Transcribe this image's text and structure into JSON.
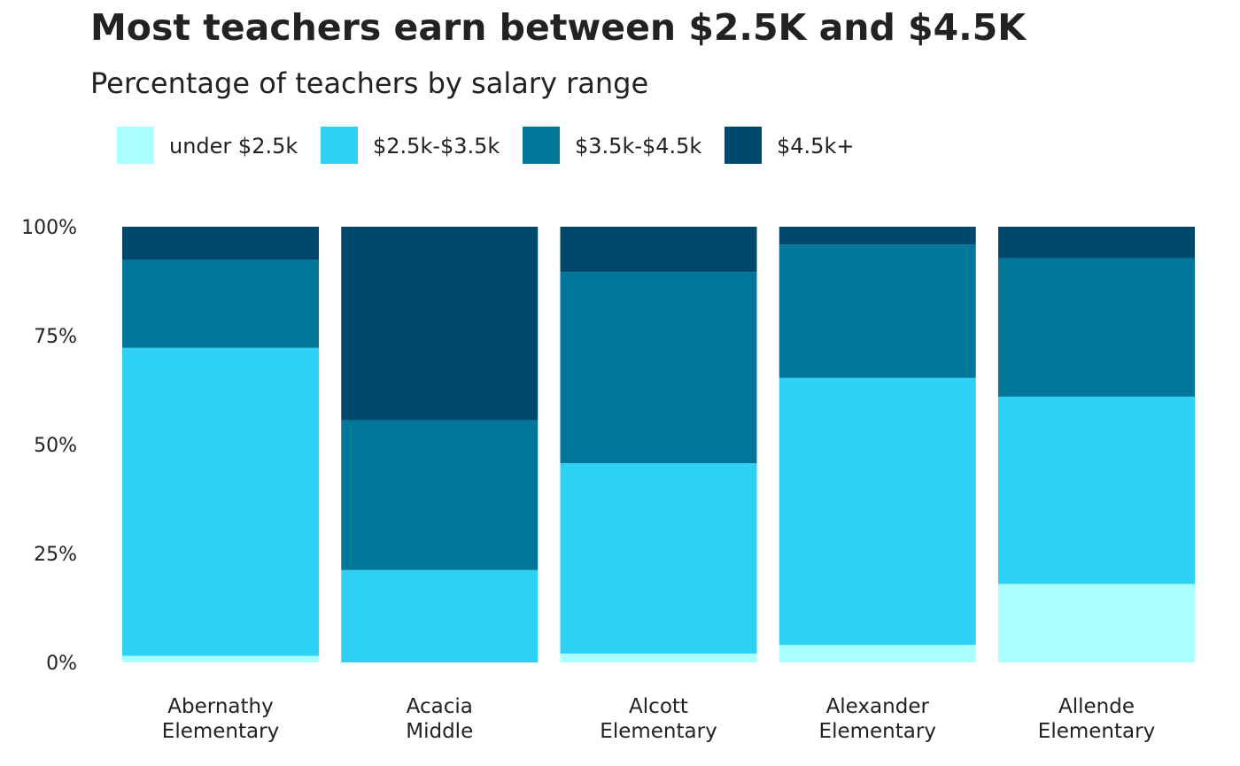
{
  "title": "Most teachers earn between $2.5K and $4.5K",
  "subtitle": "Percentage of teachers by salary range",
  "chart_data": {
    "type": "bar",
    "stacked": true,
    "orientation": "vertical",
    "title": "Most teachers earn between $2.5K and $4.5K",
    "subtitle": "Percentage of teachers by salary range",
    "categories": [
      [
        "Abernathy",
        "Elementary"
      ],
      [
        "Acacia",
        "Middle"
      ],
      [
        "Alcott",
        "Elementary"
      ],
      [
        "Alexander",
        "Elementary"
      ],
      [
        "Allende",
        "Elementary"
      ]
    ],
    "series": [
      {
        "name": "under $2.5k",
        "color": "#aaffff",
        "values": [
          1.5,
          0,
          2,
          4,
          18
        ]
      },
      {
        "name": "$2.5k-$3.5k",
        "color": "#2ed0f3",
        "values": [
          70.7,
          21.2,
          43.7,
          61.3,
          43
        ]
      },
      {
        "name": "$3.5k-$4.5k",
        "color": "#007699",
        "values": [
          20.2,
          34.4,
          43.9,
          30.6,
          31.8
        ]
      },
      {
        "name": "$4.5k+",
        "color": "#00486c",
        "values": [
          7.6,
          44.4,
          10.4,
          4.1,
          7.2
        ]
      }
    ],
    "y_ticks": [
      "0%",
      "25%",
      "50%",
      "75%",
      "100%"
    ],
    "ylim": [
      0,
      100
    ],
    "legend_position": "top-left",
    "grid": false
  }
}
